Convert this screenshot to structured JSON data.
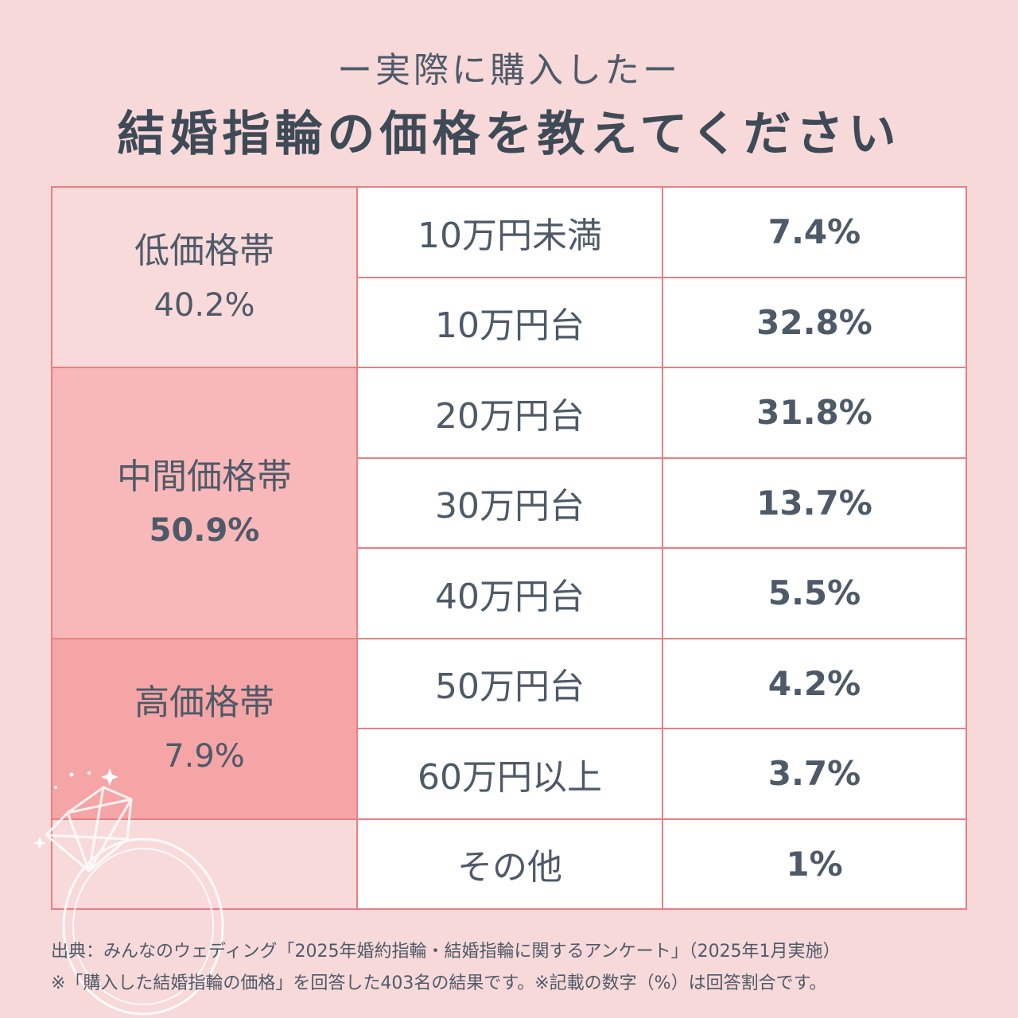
{
  "header": {
    "subtitle": "ー実際に購入したー",
    "title": "結婚指輪の価格を教えてください"
  },
  "colors": {
    "background": "#f7d9d9",
    "border": "#e97f84",
    "group_low": "#f8dada",
    "group_mid": "#f8b8b9",
    "group_high": "#f6a5a6",
    "group_other": "#f8dada",
    "text": "#4e5a68"
  },
  "chart_data": {
    "type": "table",
    "title": "結婚指輪の価格を教えてください",
    "subtitle": "ー実際に購入したー",
    "groups": [
      {
        "label": "低価格帯",
        "value": "40.2%",
        "bold": false,
        "rows": 2
      },
      {
        "label": "中間価格帯",
        "value": "50.9%",
        "bold": true,
        "rows": 3
      },
      {
        "label": "高価格帯",
        "value": "7.9%",
        "bold": false,
        "rows": 2
      },
      {
        "label": "",
        "value": "",
        "bold": false,
        "rows": 1
      }
    ],
    "rows": [
      {
        "range": "10万円未満",
        "value": "7.4%"
      },
      {
        "range": "10万円台",
        "value": "32.8%"
      },
      {
        "range": "20万円台",
        "value": "31.8%"
      },
      {
        "range": "30万円台",
        "value": "13.7%"
      },
      {
        "range": "40万円台",
        "value": "5.5%"
      },
      {
        "range": "50万円台",
        "value": "4.2%"
      },
      {
        "range": "60万円以上",
        "value": "3.7%"
      },
      {
        "range": "その他",
        "value": "1%"
      }
    ]
  },
  "footer": {
    "source": "出典：みんなのウェディング「2025年婚約指輪・結婚指輪に関するアンケート」（2025年1月実施）",
    "note": "※「購入した結婚指輪の価格」を回答した403名の結果です。※記載の数字（%）は回答割合です。"
  },
  "decoration": {
    "icon": "ring-icon"
  }
}
